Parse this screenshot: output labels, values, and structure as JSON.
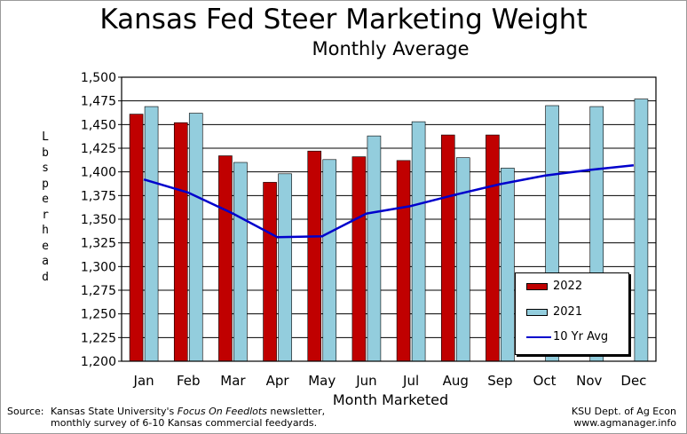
{
  "chart_data": {
    "type": "bar",
    "title": "Kansas Fed Steer Marketing Weight",
    "subtitle": "Monthly Average",
    "xlabel": "Month Marketed",
    "ylabel": "Lbs per head",
    "ylim": [
      1200,
      1500
    ],
    "yticks": [
      "1,200",
      "1,225",
      "1,250",
      "1,275",
      "1,300",
      "1,325",
      "1,350",
      "1,375",
      "1,400",
      "1,425",
      "1,450",
      "1,475",
      "1,500"
    ],
    "categories": [
      "Jan",
      "Feb",
      "Mar",
      "Apr",
      "May",
      "Jun",
      "Jul",
      "Aug",
      "Sep",
      "Oct",
      "Nov",
      "Dec"
    ],
    "grid": "horizontal",
    "legend_position": "bottom-right",
    "series": [
      {
        "name": "2022",
        "type": "bar",
        "color": "#c00000",
        "values": [
          1461,
          1452,
          1417,
          1389,
          1422,
          1416,
          1412,
          1439,
          1439,
          null,
          null,
          null
        ]
      },
      {
        "name": "2021",
        "type": "bar",
        "color": "#93cddd",
        "values": [
          1469,
          1462,
          1410,
          1398,
          1413,
          1438,
          1453,
          1415,
          1404,
          1470,
          1469,
          1477
        ]
      },
      {
        "name": "10 Yr Avg",
        "type": "line",
        "color": "#0000cc",
        "values": [
          1392,
          1378,
          1356,
          1331,
          1332,
          1356,
          1364,
          1376,
          1387,
          1396,
          1402,
          1407
        ]
      }
    ]
  },
  "footer": {
    "source_label": "Source:",
    "source_prefix": "Kansas State University's ",
    "source_publication": "Focus On Feedlots",
    "source_suffix": " newsletter,",
    "source_line2": "monthly survey of 6-10 Kansas commercial feedyards.",
    "credit_line1": "KSU Dept. of Ag Econ",
    "credit_line2": "www.agmanager.info"
  }
}
